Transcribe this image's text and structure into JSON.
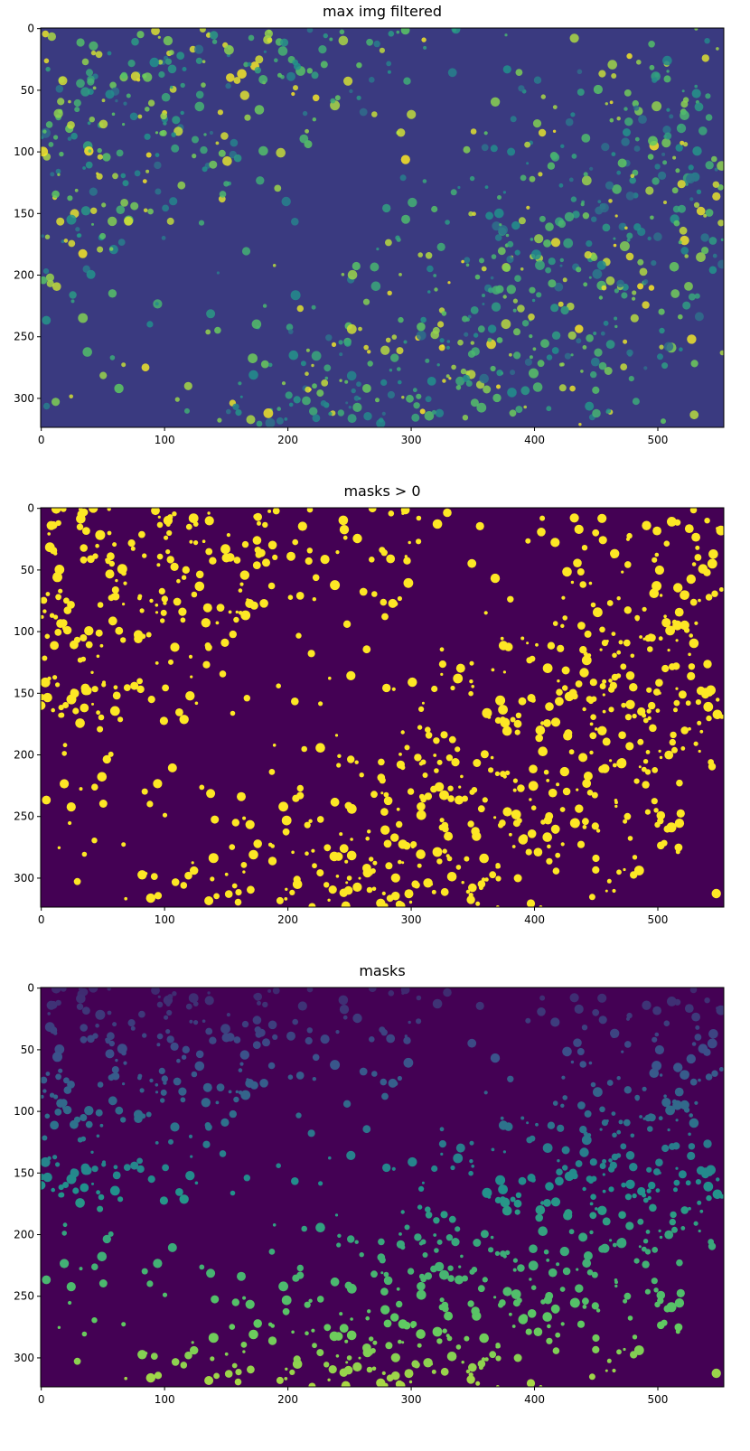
{
  "chart_data": [
    {
      "type": "image",
      "title": "max img filtered",
      "xlim": [
        -0.5,
        553.5
      ],
      "ylim": [
        323.5,
        -0.5
      ],
      "xticks": [
        0,
        100,
        200,
        300,
        400,
        500
      ],
      "yticks": [
        0,
        50,
        100,
        150,
        200,
        250,
        300
      ]
    },
    {
      "type": "image",
      "title": "masks > 0",
      "xlim": [
        -0.5,
        553.5
      ],
      "ylim": [
        323.5,
        -0.5
      ],
      "xticks": [
        0,
        100,
        200,
        300,
        400,
        500
      ],
      "yticks": [
        0,
        50,
        100,
        150,
        200,
        250,
        300
      ]
    },
    {
      "type": "image",
      "title": "masks",
      "xlim": [
        -0.5,
        553.5
      ],
      "ylim": [
        323.5,
        -0.5
      ],
      "xticks": [
        0,
        100,
        200,
        300,
        400,
        500
      ],
      "yticks": [
        0,
        50,
        100,
        150,
        200,
        250,
        300
      ]
    }
  ]
}
